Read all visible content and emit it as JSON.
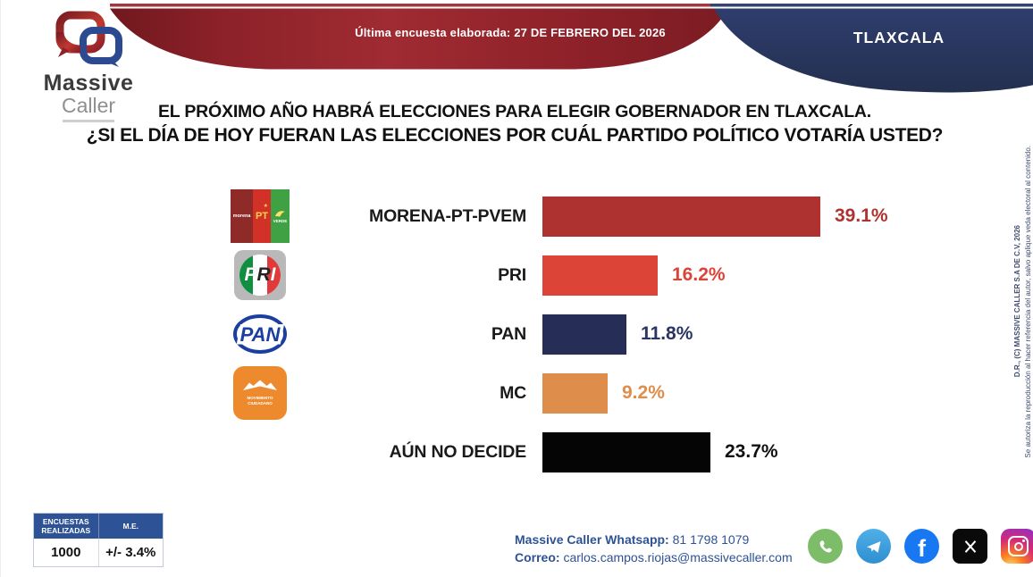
{
  "header": {
    "banner_text": "Última encuesta elaborada: 27 DE FEBRERO DEL 2026",
    "region": "TLAXCALA",
    "colors": {
      "ribbon_red": "#8E2129",
      "navy": "#2A3865"
    }
  },
  "brand": {
    "word1": "Massive",
    "word2": "Caller"
  },
  "title": {
    "line1": "EL PRÓXIMO AÑO HABRÁ ELECCIONES PARA ELEGIR GOBERNADOR EN TLAXCALA.",
    "line2": "¿SI EL DÍA DE HOY FUERAN LAS ELECCIONES POR CUÁL PARTIDO POLÍTICO VOTARÍA USTED?"
  },
  "chart_data": {
    "type": "bar",
    "orientation": "horizontal",
    "title": "¿SI EL DÍA DE HOY FUERAN LAS ELECCIONES POR CUÁL PARTIDO POLÍTICO VOTARÍA USTED?",
    "unit": "%",
    "xlim": [
      0,
      45
    ],
    "grid": false,
    "value_labels_shown": true,
    "categories": [
      "MORENA-PT-PVEM",
      "PRI",
      "PAN",
      "MC",
      "AÚN NO DECIDE"
    ],
    "values": [
      39.1,
      16.2,
      11.8,
      9.2,
      23.7
    ],
    "series": [
      {
        "label": "MORENA-PT-PVEM",
        "value": 39.1,
        "display": "39.1%",
        "bar_color": "#AE3330",
        "value_color": "#AE3330",
        "logo": "morena-pt-pvem"
      },
      {
        "label": "PRI",
        "value": 16.2,
        "display": "16.2%",
        "bar_color": "#DC4438",
        "value_color": "#DC4438",
        "logo": "pri"
      },
      {
        "label": "PAN",
        "value": 11.8,
        "display": "11.8%",
        "bar_color": "#262E58",
        "value_color": "#2A3562",
        "logo": "pan"
      },
      {
        "label": "MC",
        "value": 9.2,
        "display": "9.2%",
        "bar_color": "#DE8D4B",
        "value_color": "#DE8D4B",
        "logo": "mc"
      },
      {
        "label": "AÚN NO DECIDE",
        "value": 23.7,
        "display": "23.7%",
        "bar_color": "#050505",
        "value_color": "#111111",
        "logo": null
      }
    ]
  },
  "party_logos": {
    "morena": "morena",
    "pt": "PT",
    "pt_star": "★",
    "pvem": "VERDE",
    "pri_letters": [
      "P",
      "R",
      "I"
    ],
    "pan": "PAN",
    "mc_line1": "MOVIMIENTO",
    "mc_line2": "CIUDADANO"
  },
  "stats_table": {
    "headers": [
      "ENCUESTAS REALIZADAS",
      "M.E."
    ],
    "values": [
      "1000",
      "+/- 3.4%"
    ]
  },
  "contact": {
    "whatsapp_label": "Massive Caller Whatsapp:",
    "whatsapp_number": "81 1798 1079",
    "email_label": "Correo:",
    "email": "carlos.campos.riojas@massivecaller.com"
  },
  "social": [
    "whatsapp",
    "telegram",
    "facebook",
    "x",
    "instagram"
  ],
  "legal": {
    "copyright": "D.R., (C) MASSIVE CALLER S.A DE C.V, 2026",
    "disclaimer": "Se autoriza la reproducción al hacer referencia del autor, salvo aplique veda electoral al contenido."
  }
}
